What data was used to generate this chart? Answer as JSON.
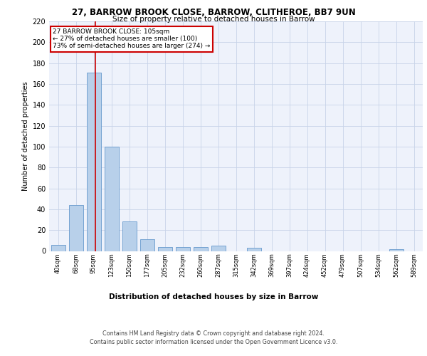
{
  "title1": "27, BARROW BROOK CLOSE, BARROW, CLITHEROE, BB7 9UN",
  "title2": "Size of property relative to detached houses in Barrow",
  "xlabel": "Distribution of detached houses by size in Barrow",
  "ylabel": "Number of detached properties",
  "categories": [
    "40sqm",
    "68sqm",
    "95sqm",
    "123sqm",
    "150sqm",
    "177sqm",
    "205sqm",
    "232sqm",
    "260sqm",
    "287sqm",
    "315sqm",
    "342sqm",
    "369sqm",
    "397sqm",
    "424sqm",
    "452sqm",
    "479sqm",
    "507sqm",
    "534sqm",
    "562sqm",
    "589sqm"
  ],
  "values": [
    6,
    44,
    171,
    100,
    28,
    11,
    4,
    4,
    4,
    5,
    0,
    3,
    0,
    0,
    0,
    0,
    0,
    0,
    0,
    2,
    0
  ],
  "bar_color": "#b8d0ea",
  "bar_edge_color": "#6699cc",
  "red_line_x": 2.1,
  "ylim": [
    0,
    220
  ],
  "yticks": [
    0,
    20,
    40,
    60,
    80,
    100,
    120,
    140,
    160,
    180,
    200,
    220
  ],
  "annotation_text": "27 BARROW BROOK CLOSE: 105sqm\n← 27% of detached houses are smaller (100)\n73% of semi-detached houses are larger (274) →",
  "annotation_box_color": "#ffffff",
  "annotation_box_edge": "#cc0000",
  "footer1": "Contains HM Land Registry data © Crown copyright and database right 2024.",
  "footer2": "Contains public sector information licensed under the Open Government Licence v3.0.",
  "bg_color": "#eef2fb",
  "grid_color": "#c8d4e8"
}
